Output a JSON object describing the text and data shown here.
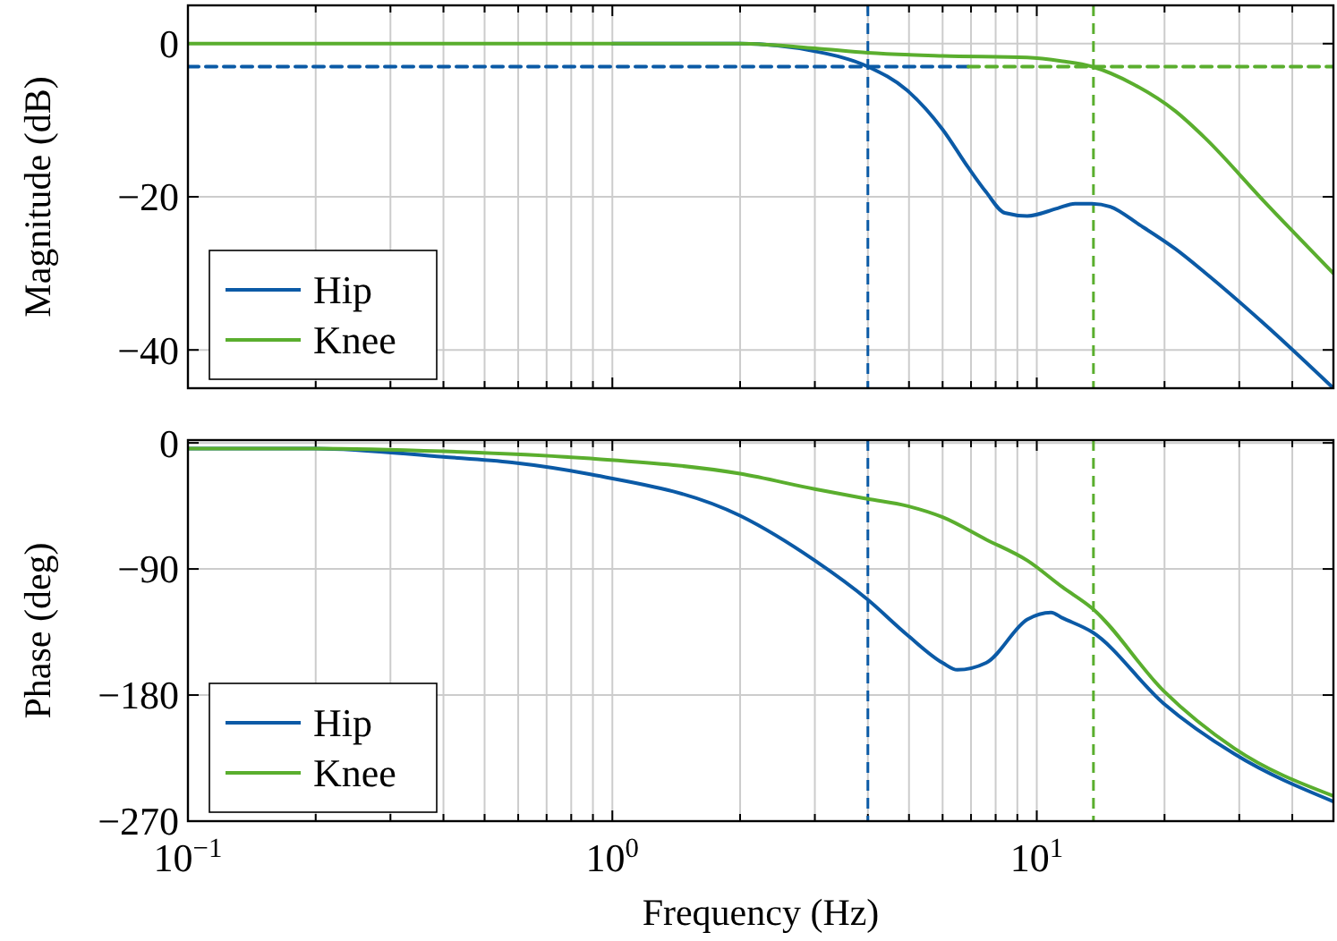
{
  "chart_data": [
    {
      "type": "line",
      "ylabel": "Magnitude (dB)",
      "log": "x",
      "grid": true,
      "legend": "bottom left",
      "tick_labels": "y",
      "line_style": "solid",
      "marker": "none",
      "xlim": [
        0.1,
        50
      ],
      "ylim": [
        -45,
        5
      ],
      "xticks": [
        {
          "value": 0.1,
          "label": null
        },
        {
          "value": 0.2,
          "label": null
        },
        {
          "value": 0.3,
          "label": null
        },
        {
          "value": 0.4,
          "label": null
        },
        {
          "value": 0.5,
          "label": null
        },
        {
          "value": 0.6,
          "label": null
        },
        {
          "value": 0.7,
          "label": null
        },
        {
          "value": 0.8,
          "label": null
        },
        {
          "value": 0.9,
          "label": null
        },
        {
          "value": 1,
          "label": null
        },
        {
          "value": 2,
          "label": null
        },
        {
          "value": 3,
          "label": null
        },
        {
          "value": 4,
          "label": null
        },
        {
          "value": 5,
          "label": null
        },
        {
          "value": 6,
          "label": null
        },
        {
          "value": 7,
          "label": null
        },
        {
          "value": 8,
          "label": null
        },
        {
          "value": 9,
          "label": null
        },
        {
          "value": 10,
          "label": null
        },
        {
          "value": 20,
          "label": null
        },
        {
          "value": 30,
          "label": null
        },
        {
          "value": 40,
          "label": null
        },
        {
          "value": 50,
          "label": null
        }
      ],
      "yticks": [
        {
          "value": 0,
          "label": "0"
        },
        {
          "value": -20,
          "label": "−20"
        },
        {
          "value": -40,
          "label": "−40"
        }
      ],
      "series": [
        {
          "name": "Hip",
          "color": "#0b5aa6",
          "x": [
            1,
            2,
            3,
            4,
            4.95,
            6,
            6.9,
            7.6,
            8.4,
            9.5,
            11.2,
            12.3,
            13.5,
            14.9,
            17.5,
            21.2,
            24.9,
            34.2,
            50
          ],
          "values": [
            0,
            0,
            -1,
            -3,
            -6.1,
            -11.2,
            -16.2,
            -19.4,
            -22.1,
            -22.5,
            -21.5,
            -20.9,
            -20.9,
            -21.3,
            -23.7,
            -26.8,
            -29.9,
            -36.5,
            -45
          ]
        },
        {
          "name": "Knee",
          "color": "#5aae2e",
          "x": [
            0.1,
            1,
            2,
            3,
            4,
            6,
            9.5,
            11.5,
            13.5,
            16.9,
            21.2,
            24.9,
            34.2,
            50
          ],
          "values": [
            0,
            0,
            0,
            -0.6,
            -1.2,
            -1.6,
            -1.8,
            -2.3,
            -3,
            -5.3,
            -8.8,
            -12.3,
            -20.5,
            -30
          ]
        },
        {
          "color": "#0b5aa6",
          "line_style": "dashed",
          "x": [
            0.1,
            6.9
          ],
          "values": [
            -3,
            -3
          ]
        },
        {
          "color": "#5aae2e",
          "line_style": "dashed",
          "x": [
            6.9,
            50
          ],
          "values": [
            -3,
            -3
          ]
        }
      ],
      "ref_lines": [
        {
          "axis": "x",
          "value": 4,
          "color": "#0b5aa6",
          "line_style": "dashed"
        },
        {
          "axis": "x",
          "value": 13.6,
          "color": "#5aae2e",
          "line_style": "dashed"
        }
      ]
    },
    {
      "type": "line",
      "ylabel": "Phase (deg)",
      "xlabel": "Frequency (Hz)",
      "log": "x",
      "grid": true,
      "legend": "bottom left",
      "line_style": "solid",
      "marker": "none",
      "xlim": [
        0.1,
        50
      ],
      "ylim": [
        -270,
        2
      ],
      "xticks": [
        {
          "value": 0.1,
          "label": "10$^{−1}$"
        },
        {
          "value": 0.2,
          "label": null
        },
        {
          "value": 0.3,
          "label": null
        },
        {
          "value": 0.4,
          "label": null
        },
        {
          "value": 0.5,
          "label": null
        },
        {
          "value": 0.6,
          "label": null
        },
        {
          "value": 0.7,
          "label": null
        },
        {
          "value": 0.8,
          "label": null
        },
        {
          "value": 0.9,
          "label": null
        },
        {
          "value": 1,
          "label": "10$^{0}$"
        },
        {
          "value": 2,
          "label": null
        },
        {
          "value": 3,
          "label": null
        },
        {
          "value": 4,
          "label": null
        },
        {
          "value": 5,
          "label": null
        },
        {
          "value": 6,
          "label": null
        },
        {
          "value": 7,
          "label": null
        },
        {
          "value": 8,
          "label": null
        },
        {
          "value": 9,
          "label": null
        },
        {
          "value": 10,
          "label": "10$^{1}$"
        },
        {
          "value": 20,
          "label": null
        },
        {
          "value": 30,
          "label": null
        },
        {
          "value": 40,
          "label": null
        },
        {
          "value": 50,
          "label": null
        }
      ],
      "yticks": [
        {
          "value": 0,
          "label": "0"
        },
        {
          "value": -90,
          "label": "−90"
        },
        {
          "value": -180,
          "label": "−180"
        },
        {
          "value": -270,
          "label": "−270"
        }
      ],
      "series": [
        {
          "name": "Hip",
          "color": "#0b5aa6",
          "x": [
            0.1,
            0.2,
            0.4,
            0.58,
            0.87,
            2,
            3,
            4,
            4.95,
            6,
            6.5,
            7.6,
            9.5,
            10.8,
            11.5,
            13.5,
            19.9,
            29.2,
            50
          ],
          "values": [
            -4,
            -4,
            -10,
            -14,
            -22,
            -52,
            -84,
            -112,
            -137,
            -157,
            -162,
            -157,
            -126,
            -121,
            -125,
            -135,
            -186,
            -222,
            -256
          ]
        },
        {
          "name": "Knee",
          "color": "#5aae2e",
          "x": [
            0.1,
            0.2,
            0.4,
            0.87,
            2,
            3,
            4,
            4.95,
            6,
            7.6,
            9.5,
            11.5,
            13.5,
            19.9,
            29.2,
            50
          ],
          "values": [
            -4,
            -4,
            -6,
            -11,
            -22,
            -33,
            -40,
            -45,
            -53,
            -69,
            -84,
            -103,
            -118,
            -177,
            -218,
            -252
          ]
        }
      ],
      "ref_lines": [
        {
          "axis": "x",
          "value": 4,
          "color": "#0b5aa6",
          "line_style": "dashed"
        },
        {
          "axis": "x",
          "value": 13.6,
          "color": "#5aae2e",
          "line_style": "dashed"
        }
      ]
    }
  ]
}
